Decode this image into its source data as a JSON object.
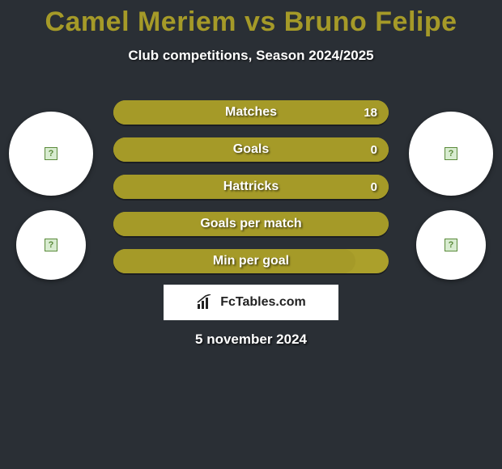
{
  "colors": {
    "background": "#2a2f35",
    "accent": "#a59a28",
    "track": "#aba02b",
    "title": "#a59a28",
    "white": "#ffffff"
  },
  "title": "Camel Meriem vs Bruno Felipe",
  "subtitle": "Club competitions, Season 2024/2025",
  "date": "5 november 2024",
  "brand": "FcTables.com",
  "bars": [
    {
      "label": "Matches",
      "right_value": "18",
      "fill_pct": 100
    },
    {
      "label": "Goals",
      "right_value": "0",
      "fill_pct": 100
    },
    {
      "label": "Hattricks",
      "right_value": "0",
      "fill_pct": 100
    },
    {
      "label": "Goals per match",
      "right_value": "",
      "fill_pct": 100
    },
    {
      "label": "Min per goal",
      "right_value": "",
      "fill_pct": 88
    }
  ]
}
